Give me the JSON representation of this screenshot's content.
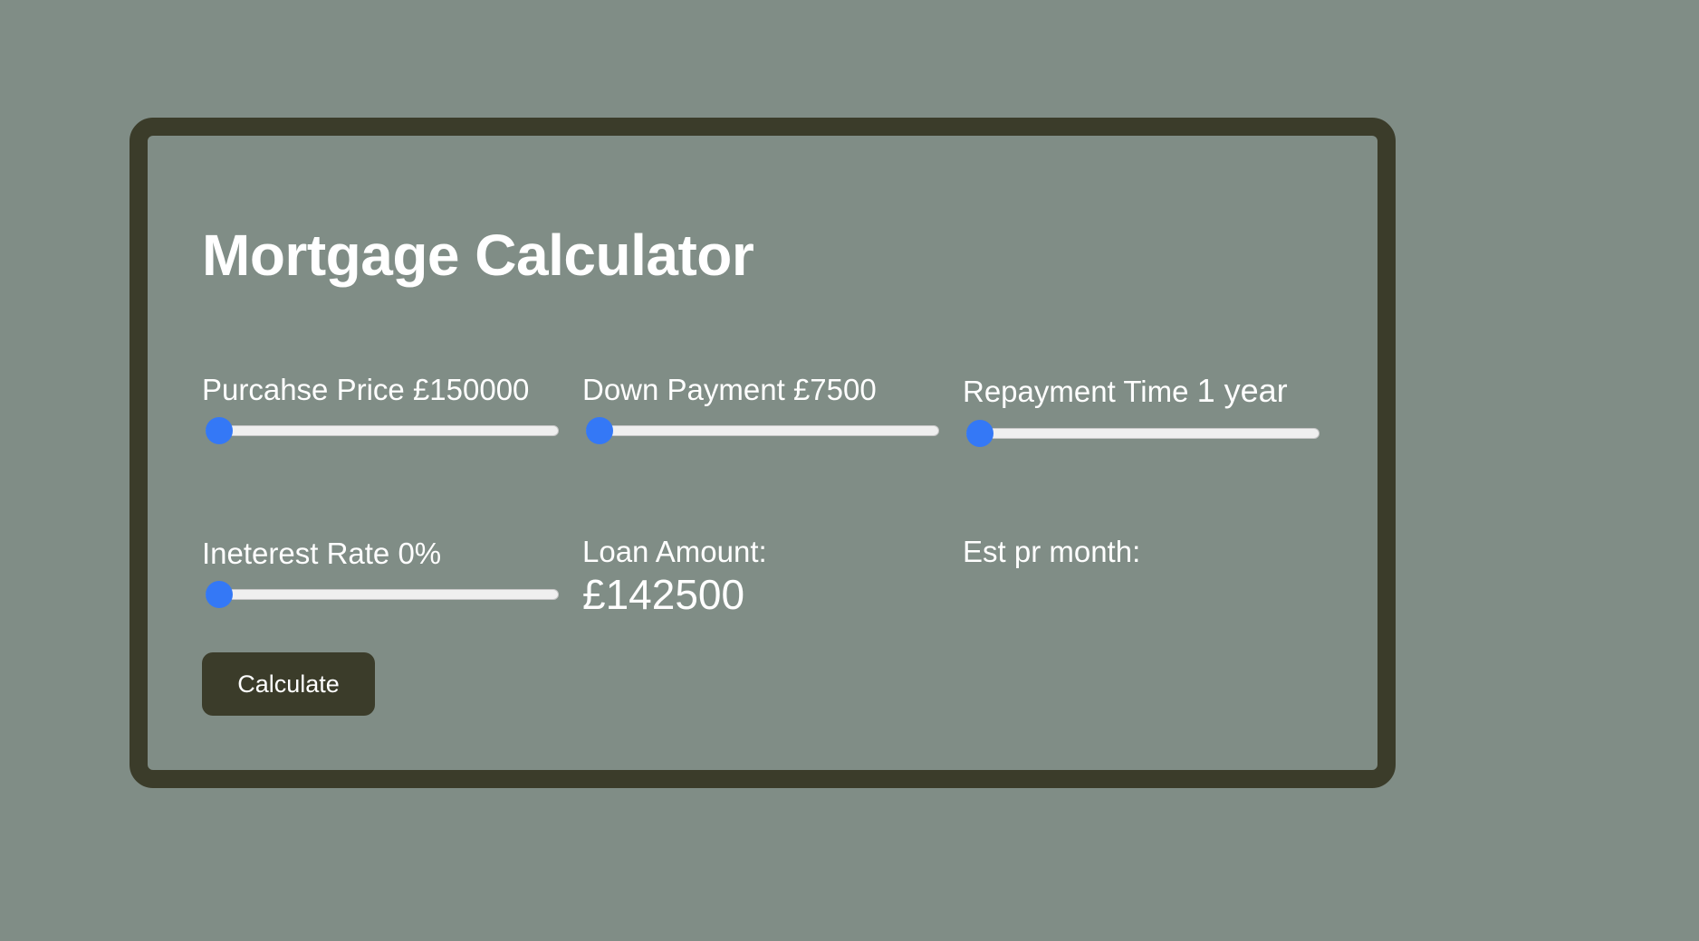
{
  "title": "Mortgage Calculator",
  "fields": {
    "purchase_price": {
      "label": "Purcahse Price",
      "value_text": "£150000",
      "slider_fraction": 0.0
    },
    "down_payment": {
      "label": "Down Payment",
      "value_text": "£7500",
      "slider_fraction": 0.0
    },
    "repayment_time": {
      "label": "Repayment Time",
      "value_text": "1 year",
      "slider_fraction": 0.0
    },
    "interest_rate": {
      "label": "Ineterest Rate",
      "value_text": "0%",
      "slider_fraction": 0.0
    }
  },
  "outputs": {
    "loan_amount": {
      "label": "Loan Amount:",
      "value": "£142500"
    },
    "est_per_month": {
      "label": "Est pr month:",
      "value": ""
    }
  },
  "calculate_label": "Calculate",
  "colors": {
    "background": "#808d86",
    "card_border": "#3b3c2a",
    "button": "#3b3c2a",
    "slider_thumb": "#3478f6",
    "slider_track": "#efefef",
    "text": "#ffffff"
  }
}
